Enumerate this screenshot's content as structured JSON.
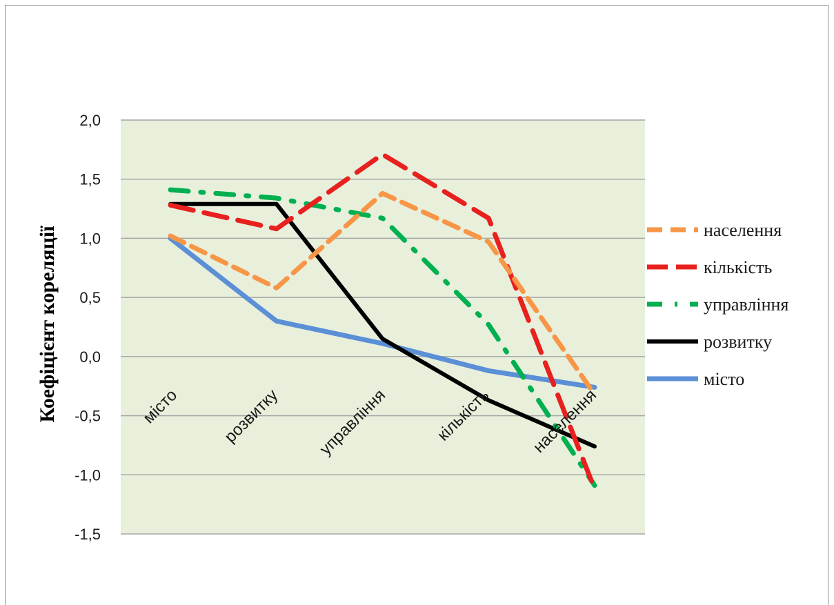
{
  "chart_data": {
    "type": "line",
    "title": "",
    "xlabel": "",
    "ylabel": "Коефіцієнт кореляції",
    "categories": [
      "місто",
      "розвитку",
      "управління",
      "кількість",
      "населення"
    ],
    "ylim": [
      -1.5,
      2.0
    ],
    "yticks": [
      "2,0",
      "1,5",
      "1,0",
      "0,5",
      "0,0",
      "-0,5",
      "-1,0",
      "-1,5"
    ],
    "grid": true,
    "plot_background": "#e8f0dc",
    "legend_position": "right",
    "series": [
      {
        "name": "населення",
        "color": "#f79646",
        "dash": "dash",
        "values": [
          1.02,
          0.58,
          1.38,
          0.97,
          -0.32
        ]
      },
      {
        "name": "кількість",
        "color": "#e8201e",
        "dash": "longdash",
        "values": [
          1.28,
          1.08,
          1.71,
          1.17,
          -1.12
        ]
      },
      {
        "name": "управління",
        "color": "#00b050",
        "dash": "dashdot",
        "values": [
          1.41,
          1.34,
          1.17,
          0.27,
          -1.09
        ]
      },
      {
        "name": "розвитку",
        "color": "#000000",
        "dash": "solid",
        "values": [
          1.29,
          1.29,
          0.15,
          -0.37,
          -0.76
        ]
      },
      {
        "name": "місто",
        "color": "#5b8fd6",
        "dash": "solid",
        "values": [
          1.0,
          0.3,
          0.11,
          -0.12,
          -0.26
        ]
      }
    ]
  }
}
